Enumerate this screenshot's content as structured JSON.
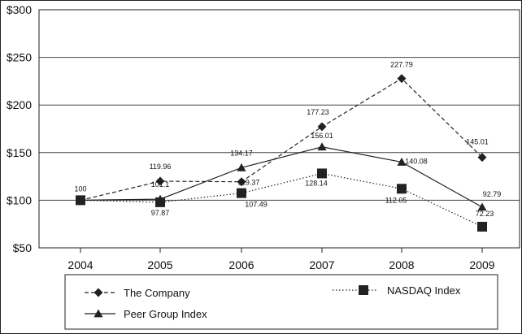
{
  "chart_data": {
    "type": "line",
    "title": "",
    "xlabel": "",
    "ylabel": "",
    "categories": [
      "2004",
      "2005",
      "2006",
      "2007",
      "2008",
      "2009"
    ],
    "y_tick_labels": [
      "$50",
      "$100",
      "$150",
      "$200",
      "$250",
      "$300"
    ],
    "y_ticks": [
      50,
      100,
      150,
      200,
      250,
      300
    ],
    "ylim": [
      50,
      300
    ],
    "grid": "horizontal",
    "legend_position": "bottom",
    "series": [
      {
        "name": "The Company",
        "marker": "diamond",
        "line": "dashed",
        "values": [
          100,
          119.96,
          119.37,
          177.23,
          227.79,
          145.01
        ],
        "labels": [
          "100",
          "119.96",
          "119.37",
          "177.23",
          "227.79",
          "145.01"
        ]
      },
      {
        "name": "Peer Group Index",
        "marker": "triangle",
        "line": "solid",
        "values": [
          100,
          101.1,
          134.17,
          156.01,
          140.08,
          92.79
        ],
        "labels": [
          "",
          "101.1",
          "134.17",
          "156.01",
          "140.08",
          "92.79"
        ]
      },
      {
        "name": "NASDAQ Index",
        "marker": "square",
        "line": "dotted",
        "values": [
          100,
          97.87,
          107.49,
          128.14,
          112.05,
          72.23
        ],
        "labels": [
          "",
          "97.87",
          "107.49",
          "128.14",
          "112.05",
          "72.23"
        ]
      }
    ]
  }
}
